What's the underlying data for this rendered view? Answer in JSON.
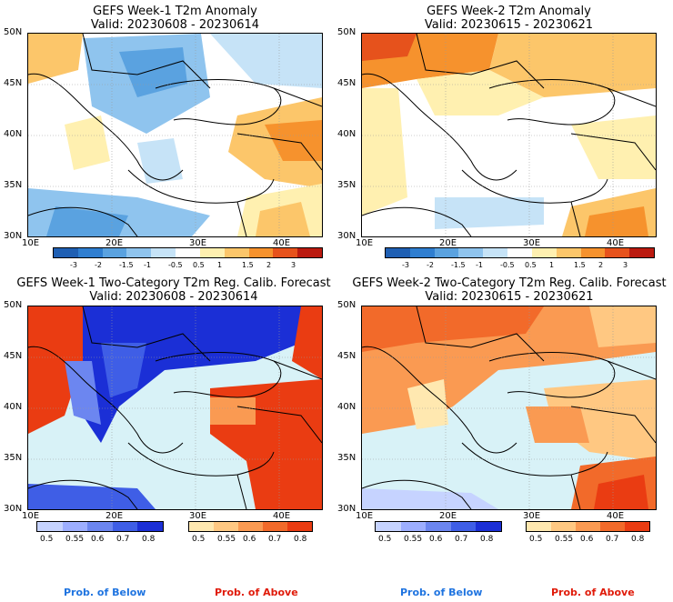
{
  "panels": [
    {
      "title": "GEFS Week-1 T2m Anomaly",
      "valid": "Valid: 20230608 - 20230614"
    },
    {
      "title": "GEFS Week-2 T2m Anomaly",
      "valid": "Valid: 20230615 - 20230621"
    },
    {
      "title": "GEFS Week-1 Two-Category T2m Reg. Calib. Forecast",
      "valid": "Valid: 20230608 - 20230614"
    },
    {
      "title": "GEFS Week-2 Two-Category T2m Reg. Calib. Forecast",
      "valid": "Valid: 20230615 - 20230621"
    }
  ],
  "lat_labels": [
    "50N",
    "45N",
    "40N",
    "35N",
    "30N"
  ],
  "lon_labels": [
    "10E",
    "20E",
    "30E",
    "40E"
  ],
  "anomaly_scale": {
    "labels": [
      "-3",
      "-2",
      "-1.5",
      "-1",
      "-0.5",
      "0.5",
      "1",
      "1.5",
      "2",
      "3"
    ],
    "colors": [
      "#1f5fb3",
      "#2f7ed0",
      "#5aa2e0",
      "#8fc4ee",
      "#c6e3f7",
      "#ffffff",
      "#fff0b0",
      "#fcc66a",
      "#f6922d",
      "#e6521c",
      "#bb1a10"
    ]
  },
  "prob_below_scale": {
    "labels": [
      "0.5",
      "0.55",
      "0.6",
      "0.7",
      "0.8"
    ],
    "colors": [
      "#c6d3ff",
      "#9daeff",
      "#6c86f0",
      "#3f5ee6",
      "#1b2fd6"
    ]
  },
  "prob_above_scale": {
    "labels": [
      "0.5",
      "0.55",
      "0.6",
      "0.7",
      "0.8"
    ],
    "colors": [
      "#ffe8b0",
      "#ffc882",
      "#fa9a52",
      "#f26a2a",
      "#ea3c12"
    ]
  },
  "prob_labels": {
    "below": "Prob. of Below",
    "above": "Prob. of Above"
  },
  "colors": {
    "below_text": "#1f74e0",
    "above_text": "#e01b0a",
    "sea": "#d8f2f7"
  }
}
